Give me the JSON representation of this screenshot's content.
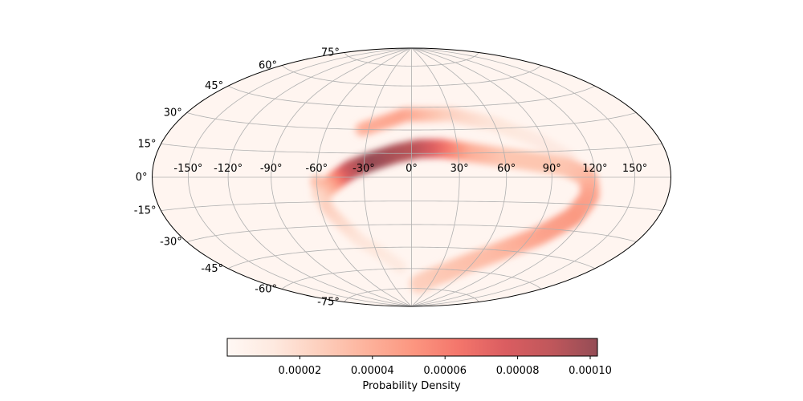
{
  "chart_data": {
    "type": "heatmap",
    "projection": "hammer",
    "title": "",
    "grid": true,
    "longitude_ticks": [
      "-150°",
      "-120°",
      "-90°",
      "-60°",
      "-30°",
      "0°",
      "30°",
      "60°",
      "90°",
      "120°",
      "150°"
    ],
    "longitude_tick_values": [
      -150,
      -120,
      -90,
      -60,
      -30,
      0,
      30,
      60,
      90,
      120,
      150
    ],
    "latitude_ticks": [
      "75°",
      "60°",
      "45°",
      "30°",
      "15°",
      "0°",
      "-15°",
      "-30°",
      "-45°",
      "-60°",
      "-75°"
    ],
    "latitude_tick_values": [
      75,
      60,
      45,
      30,
      15,
      0,
      -15,
      -30,
      -45,
      -60,
      -75
    ],
    "colormap": "Reds",
    "colormap_stops": [
      "#fff5f0",
      "#fee0d2",
      "#fcbba1",
      "#fc9272",
      "#fb6a4a",
      "#ef3b2c",
      "#cb181d",
      "#a50f15",
      "#67000d"
    ],
    "alpha": 0.7,
    "vmin": 0,
    "vmax": 0.000102,
    "colorbar": {
      "label": "Probability Density",
      "orientation": "horizontal",
      "ticks": [
        "0.00002",
        "0.00004",
        "0.00006",
        "0.00008",
        "0.00010"
      ],
      "tick_values": [
        2e-05,
        4e-05,
        6e-05,
        8e-05,
        0.0001
      ]
    },
    "density_ridge": {
      "description_units": "degrees longitude/latitude",
      "path": [
        {
          "lon": -58,
          "lat": -10,
          "value": 1.8e-05
        },
        {
          "lon": -48,
          "lat": -2,
          "value": 4.5e-05
        },
        {
          "lon": -38,
          "lat": 5,
          "value": 8.5e-05
        },
        {
          "lon": -25,
          "lat": 10,
          "value": 0.000102
        },
        {
          "lon": -10,
          "lat": 15,
          "value": 9.5e-05
        },
        {
          "lon": 5,
          "lat": 18,
          "value": 9e-05
        },
        {
          "lon": 20,
          "lat": 18,
          "value": 7e-05
        },
        {
          "lon": 40,
          "lat": 15,
          "value": 4e-05
        },
        {
          "lon": 60,
          "lat": 12,
          "value": 3e-05
        },
        {
          "lon": 80,
          "lat": 9,
          "value": 3e-05
        },
        {
          "lon": 100,
          "lat": 6,
          "value": 3e-05
        },
        {
          "lon": 115,
          "lat": 0,
          "value": 3.5e-05
        },
        {
          "lon": 118,
          "lat": -10,
          "value": 4.5e-05
        },
        {
          "lon": 112,
          "lat": -22,
          "value": 5e-05
        },
        {
          "lon": 95,
          "lat": -35,
          "value": 4.5e-05
        },
        {
          "lon": 70,
          "lat": -48,
          "value": 3.5e-05
        },
        {
          "lon": 40,
          "lat": -62,
          "value": 3e-05
        },
        {
          "lon": 10,
          "lat": -72,
          "value": 2.5e-05
        }
      ],
      "upper_arc": [
        {
          "lon": -35,
          "lat": 30,
          "value": 4e-05
        },
        {
          "lon": -5,
          "lat": 40,
          "value": 4.5e-05
        },
        {
          "lon": 30,
          "lat": 40,
          "value": 2.5e-05
        },
        {
          "lon": 60,
          "lat": 33,
          "value": 1.5e-05
        },
        {
          "lon": 85,
          "lat": 22,
          "value": 1.2e-05
        },
        {
          "lon": 105,
          "lat": 10,
          "value": 1.2e-05
        }
      ],
      "lower_branch": [
        {
          "lon": -60,
          "lat": -2,
          "value": 3.5e-05
        },
        {
          "lon": -55,
          "lat": -20,
          "value": 2.5e-05
        },
        {
          "lon": -40,
          "lat": -40,
          "value": 1.5e-05
        },
        {
          "lon": -10,
          "lat": -60,
          "value": 1.2e-05
        }
      ]
    }
  }
}
